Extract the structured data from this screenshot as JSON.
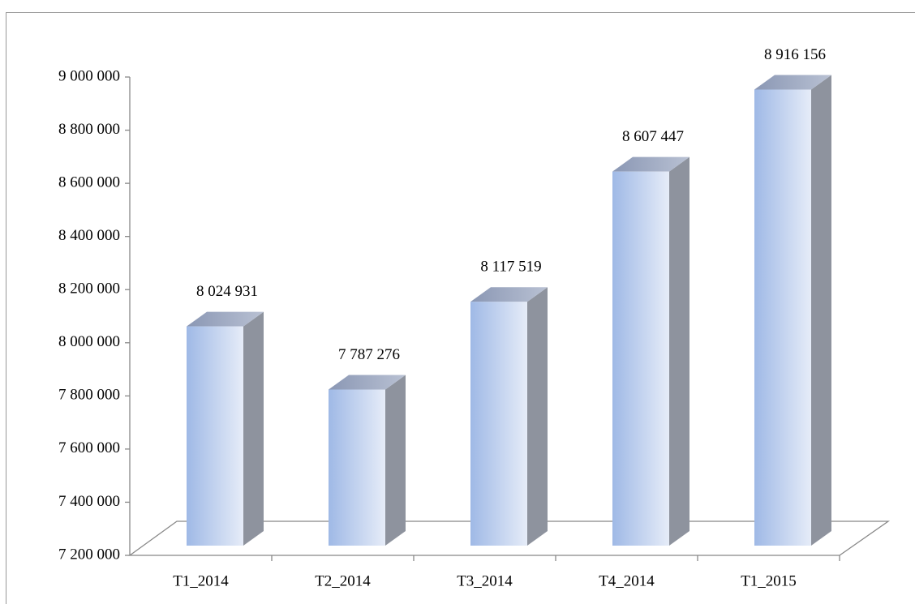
{
  "chart_data": {
    "type": "bar3d",
    "categories": [
      "T1_2014",
      "T2_2014",
      "T3_2014",
      "T4_2014",
      "T1_2015"
    ],
    "values": [
      8024931,
      7787276,
      8117519,
      8607447,
      8916156
    ],
    "value_labels": [
      "8 024 931",
      "7 787 276",
      "8 117 519",
      "8 607 447",
      "8 916 156"
    ],
    "ylim": [
      7200000,
      9000000
    ],
    "yticks": [
      {
        "value": 7200000,
        "label": "7 200 000"
      },
      {
        "value": 7400000,
        "label": "7 400 000"
      },
      {
        "value": 7600000,
        "label": "7 600 000"
      },
      {
        "value": 7800000,
        "label": "7 800 000"
      },
      {
        "value": 8000000,
        "label": "8 000 000"
      },
      {
        "value": 8200000,
        "label": "8 200 000"
      },
      {
        "value": 8400000,
        "label": "8 400 000"
      },
      {
        "value": 8600000,
        "label": "8 600 000"
      },
      {
        "value": 8800000,
        "label": "8 800 000"
      },
      {
        "value": 9000000,
        "label": "9 000 000"
      }
    ],
    "color": "#a4bde8"
  }
}
